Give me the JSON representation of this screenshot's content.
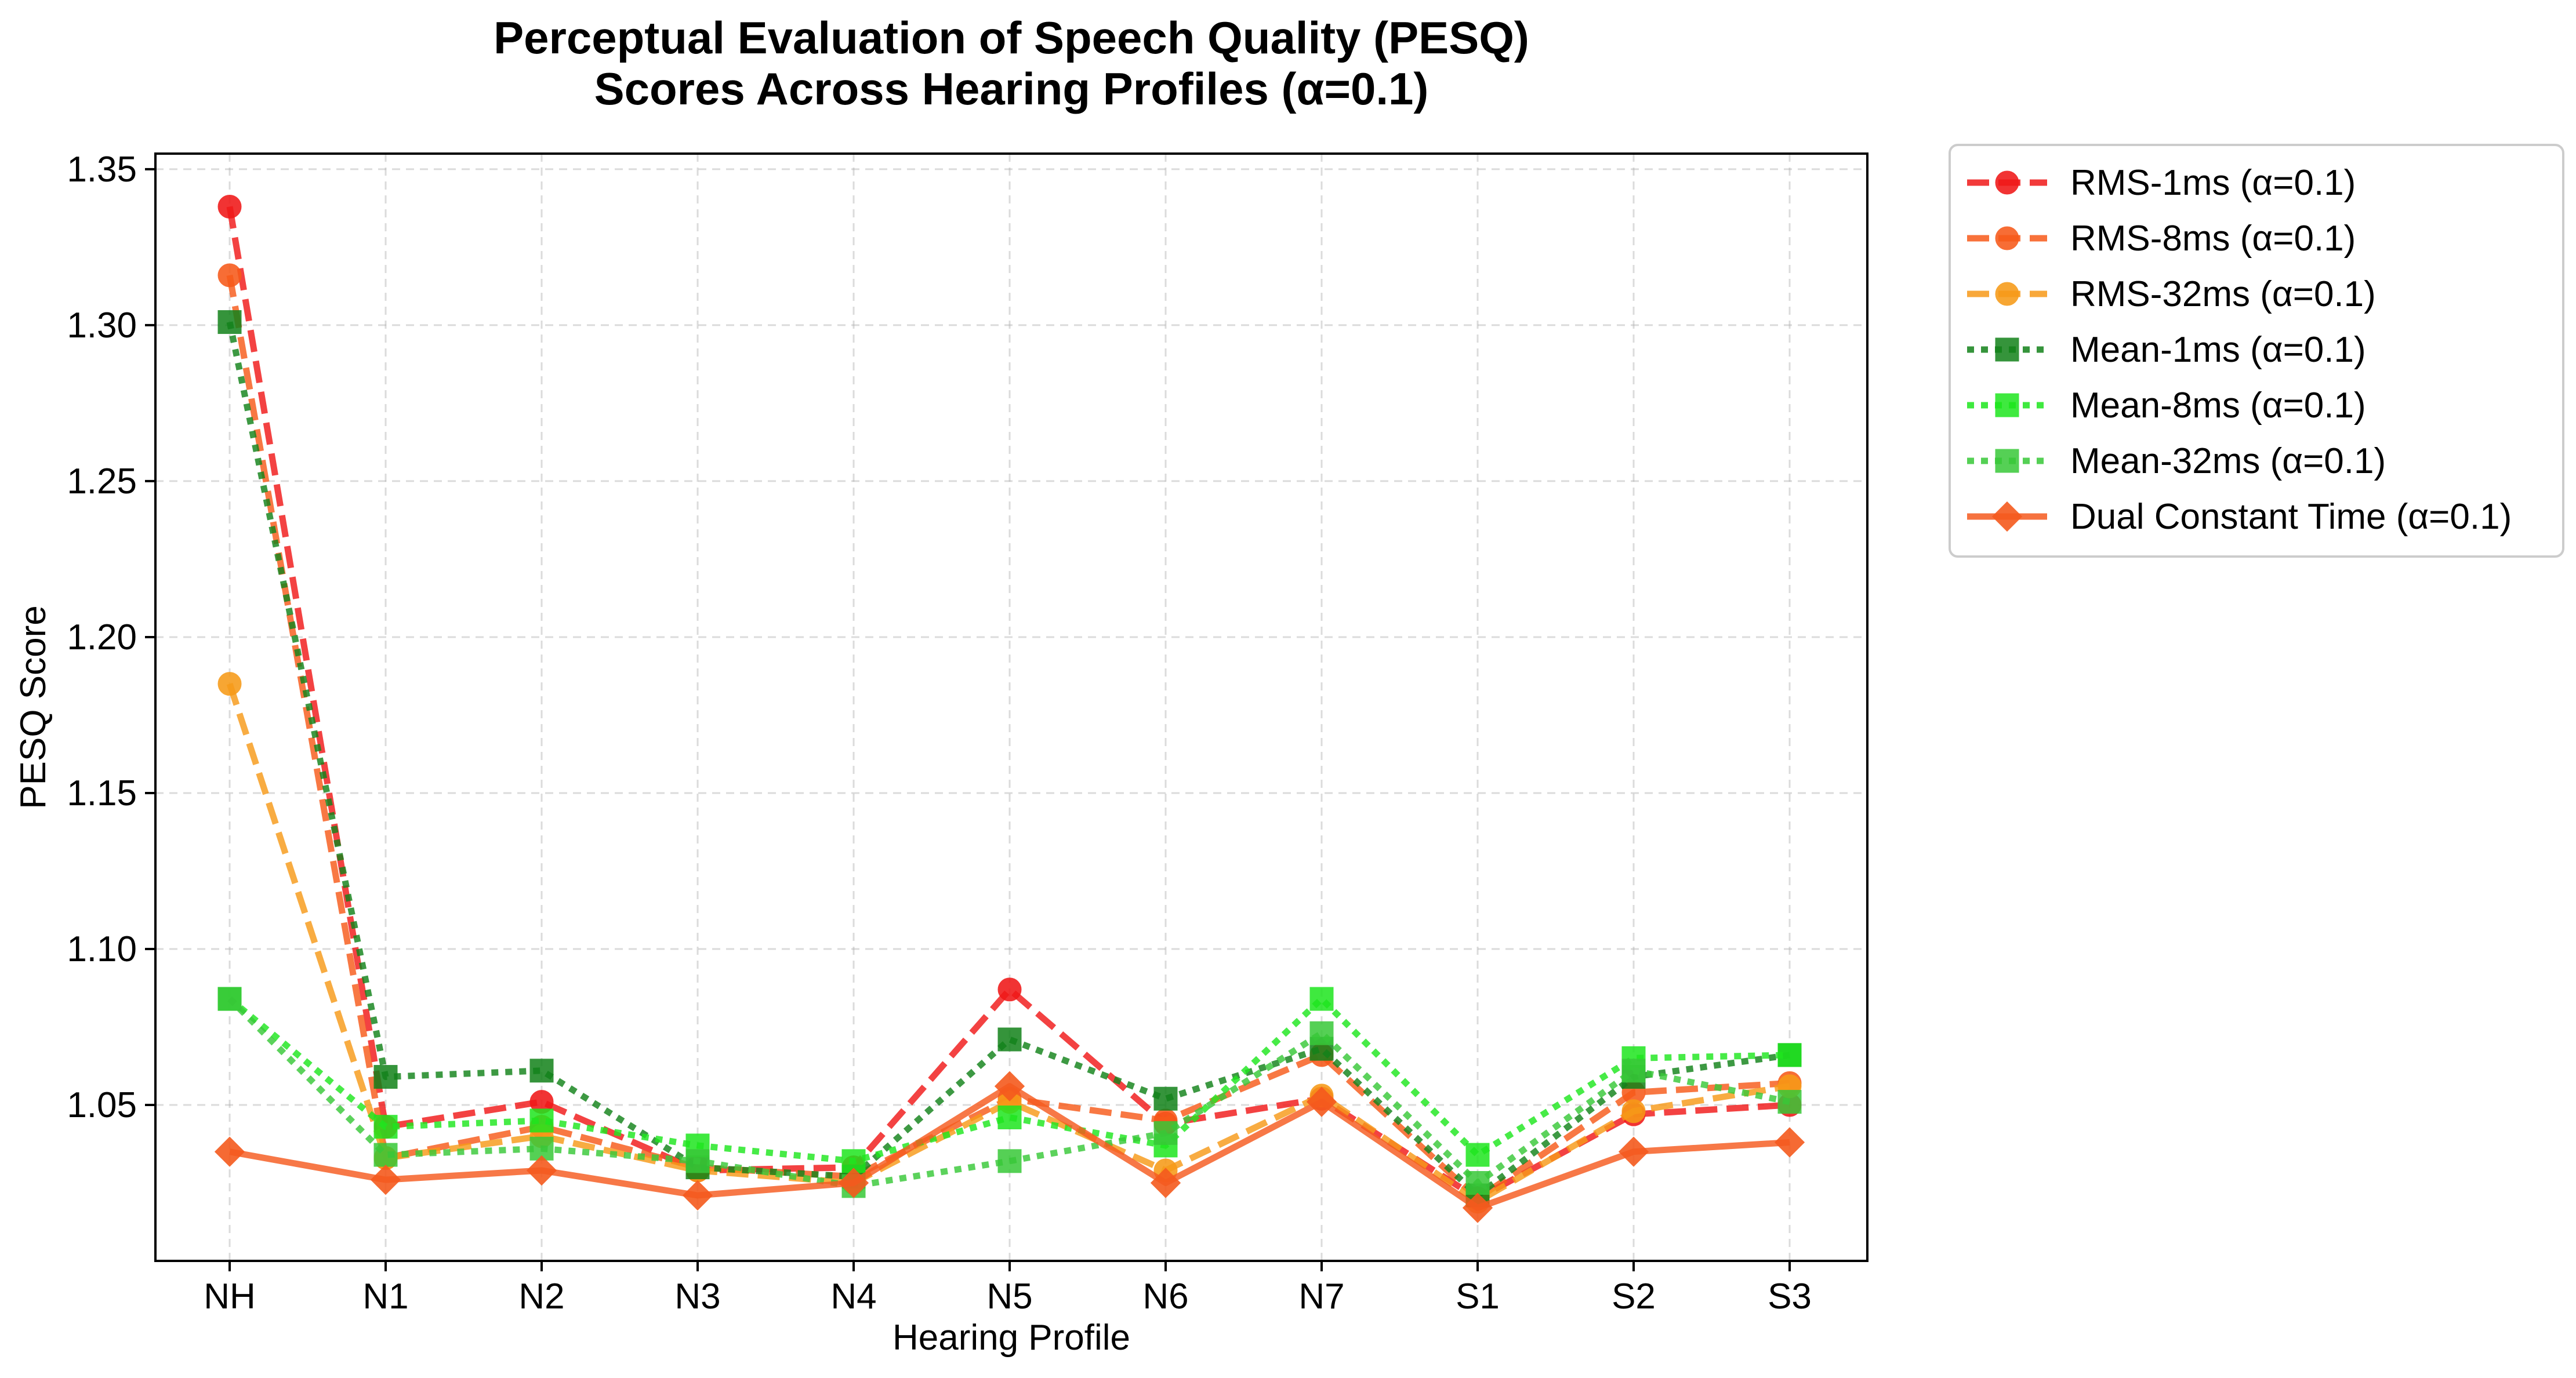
{
  "chart_data": {
    "type": "line",
    "title_line1": "Perceptual Evaluation of Speech Quality (PESQ)",
    "title_line2": "Scores Across Hearing Profiles (α=0.1)",
    "xlabel": "Hearing Profile",
    "ylabel": "PESQ Score",
    "categories": [
      "NH",
      "N1",
      "N2",
      "N3",
      "N4",
      "N5",
      "N6",
      "N7",
      "S1",
      "S2",
      "S3"
    ],
    "ylim": [
      1.0,
      1.355
    ],
    "yticks": [
      "1.05",
      "1.10",
      "1.15",
      "1.20",
      "1.25",
      "1.30",
      "1.35"
    ],
    "grid": true,
    "legend_position": "outside right, top",
    "series": [
      {
        "name": "RMS-1ms (α=0.1)",
        "color": "#f01818",
        "dash": "dashed",
        "marker": "circle",
        "values": [
          1.338,
          1.043,
          1.051,
          1.029,
          1.03,
          1.087,
          1.044,
          1.052,
          1.02,
          1.047,
          1.05
        ]
      },
      {
        "name": "RMS-8ms (α=0.1)",
        "color": "#f75a1a",
        "dash": "dashed",
        "marker": "circle",
        "values": [
          1.316,
          1.033,
          1.043,
          1.03,
          1.027,
          1.052,
          1.045,
          1.066,
          1.02,
          1.054,
          1.057
        ]
      },
      {
        "name": "RMS-32ms (α=0.1)",
        "color": "#f79a18",
        "dash": "dashed",
        "marker": "circle",
        "values": [
          1.185,
          1.033,
          1.04,
          1.029,
          1.025,
          1.051,
          1.029,
          1.053,
          1.019,
          1.048,
          1.056
        ]
      },
      {
        "name": "Mean-1ms (α=0.1)",
        "color": "#12821a",
        "dash": "dotted",
        "marker": "square",
        "values": [
          1.301,
          1.059,
          1.061,
          1.03,
          1.027,
          1.071,
          1.052,
          1.068,
          1.021,
          1.059,
          1.066
        ]
      },
      {
        "name": "Mean-8ms (α=0.1)",
        "color": "#1ee61e",
        "dash": "dotted",
        "marker": "square",
        "values": [
          1.084,
          1.043,
          1.045,
          1.037,
          1.032,
          1.046,
          1.037,
          1.084,
          1.034,
          1.065,
          1.066
        ]
      },
      {
        "name": "Mean-32ms (α=0.1)",
        "color": "#38c838",
        "dash": "dotted",
        "marker": "square",
        "values": [
          1.084,
          1.034,
          1.036,
          1.032,
          1.024,
          1.032,
          1.041,
          1.073,
          1.025,
          1.061,
          1.051
        ]
      },
      {
        "name": "Dual Constant Time (α=0.1)",
        "color": "#f55a1e",
        "dash": "solid",
        "marker": "diamond",
        "values": [
          1.035,
          1.026,
          1.029,
          1.021,
          1.025,
          1.056,
          1.025,
          1.051,
          1.017,
          1.035,
          1.038
        ]
      }
    ]
  }
}
